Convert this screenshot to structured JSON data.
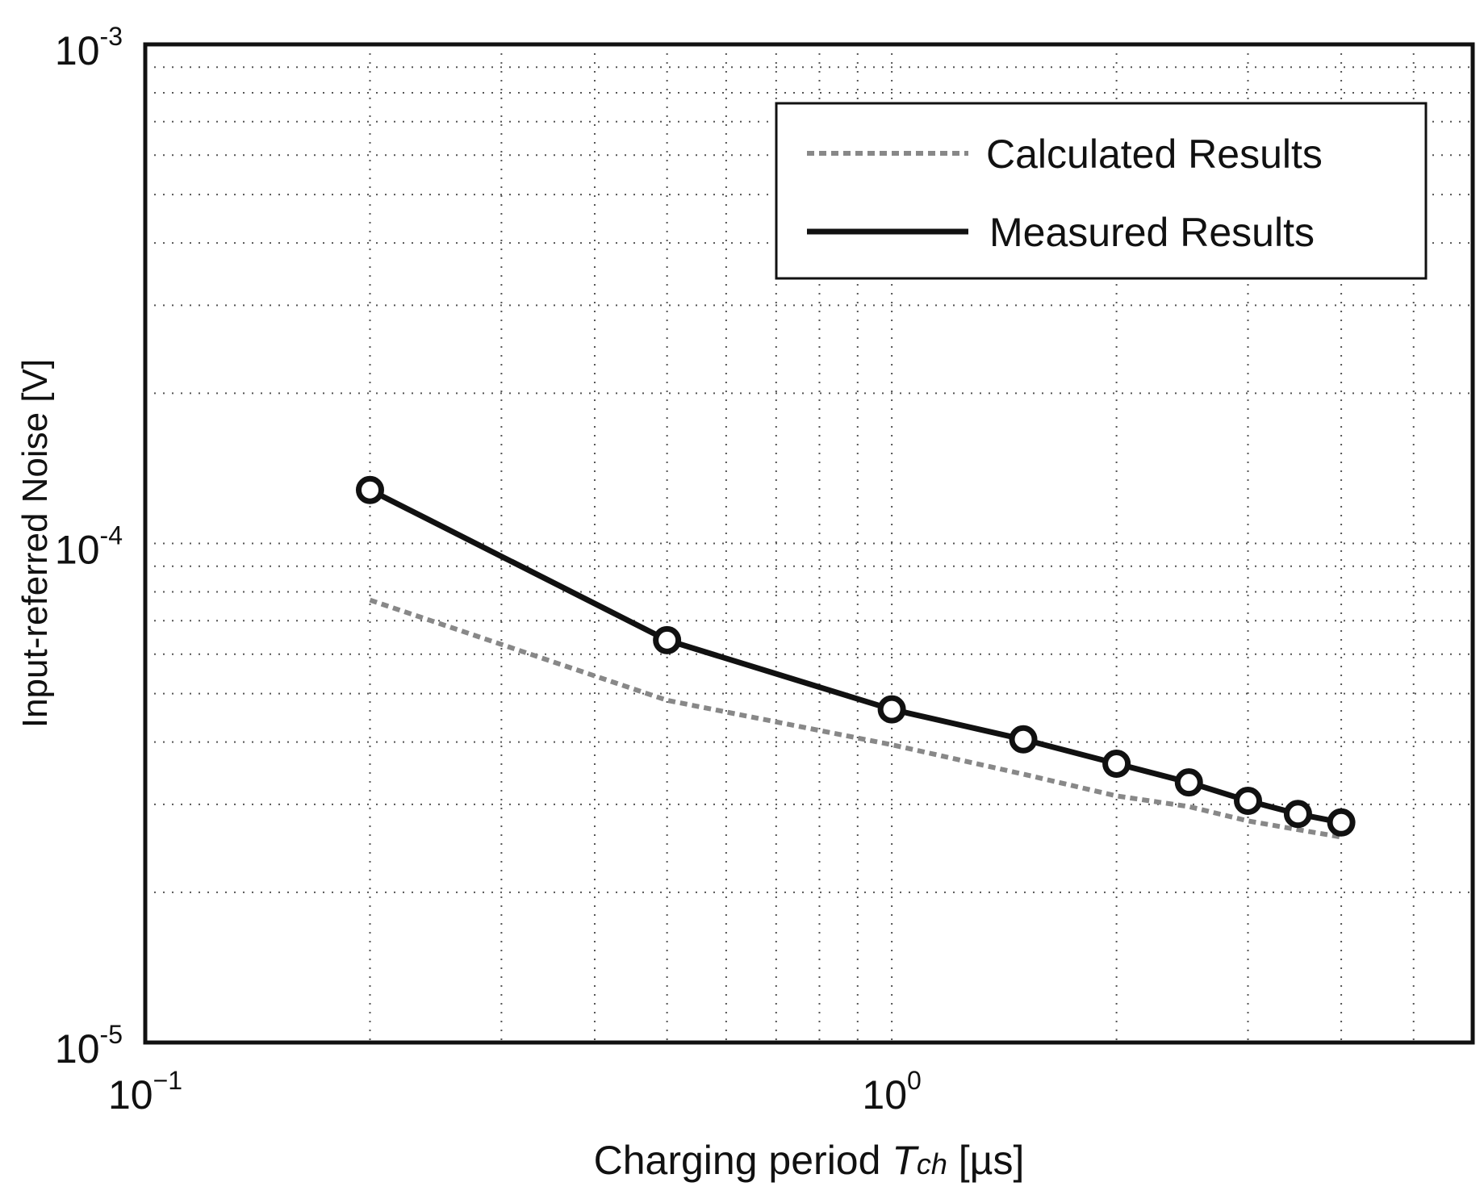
{
  "chart_data": {
    "type": "line",
    "xscale": "log",
    "yscale": "log",
    "xlim": [
      0.1,
      6
    ],
    "ylim": [
      1e-05,
      0.001
    ],
    "grid": true,
    "legend_position": "top-right",
    "xlabel": {
      "main": "Charging period ",
      "italic": "T",
      "sub": "ch",
      "unit": " [µs]"
    },
    "ylabel": "Input-referred Noise [V]",
    "xticks": [
      {
        "value": 0.1,
        "base": "10",
        "exp": "−1"
      },
      {
        "value": 1,
        "base": "10",
        "exp": "0"
      }
    ],
    "yticks": [
      {
        "value": 1e-05,
        "base": "10",
        "exp": "-5"
      },
      {
        "value": 0.0001,
        "base": "10",
        "exp": "-4"
      },
      {
        "value": 0.001,
        "base": "10",
        "exp": "-3"
      }
    ],
    "series": [
      {
        "name": "Calculated Results",
        "style": "dotted",
        "color": "#888888",
        "x": [
          0.2,
          0.5,
          1.0,
          1.5,
          2.0,
          2.5,
          3.0,
          3.5,
          4.0
        ],
        "y": [
          7.7e-05,
          4.85e-05,
          3.95e-05,
          3.45e-05,
          3.12e-05,
          2.97e-05,
          2.78e-05,
          2.67e-05,
          2.58e-05
        ]
      },
      {
        "name": "Measured Results",
        "style": "solid",
        "marker": "circle",
        "color": "#111111",
        "x": [
          0.2,
          0.5,
          1.0,
          1.5,
          2.0,
          2.5,
          3.0,
          3.5,
          4.0
        ],
        "y": [
          0.000128,
          6.4e-05,
          4.65e-05,
          4.05e-05,
          3.62e-05,
          3.32e-05,
          3.05e-05,
          2.87e-05,
          2.76e-05
        ]
      }
    ]
  }
}
